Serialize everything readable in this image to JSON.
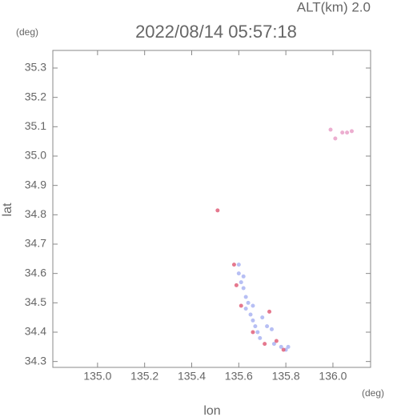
{
  "chart_data": {
    "type": "scatter",
    "title": "2022/08/14 05:57:18",
    "subtitle": "ALT(km) 2.0",
    "y_unit": "(deg)",
    "x_unit": "(deg)",
    "x_label": "lon",
    "y_label": "lat",
    "xlim": [
      134.81,
      136.16
    ],
    "ylim": [
      34.28,
      35.36
    ],
    "xticks": [
      {
        "value": 135,
        "label": "135.0"
      },
      135.2,
      135.4,
      135.6,
      135.8,
      {
        "value": 136,
        "label": "136.0"
      }
    ],
    "yticks": [
      34.3,
      34.4,
      34.5,
      34.6,
      34.7,
      34.8,
      34.9,
      {
        "value": 35,
        "label": "35.0"
      },
      35.1,
      35.2,
      35.3
    ],
    "series": [
      {
        "color": "#aab4f2",
        "x": [
          135.6,
          135.61,
          135.62,
          135.63,
          135.64,
          135.63,
          135.65,
          135.66,
          135.67,
          135.68,
          135.66,
          135.7,
          135.72,
          135.69,
          135.74,
          135.75,
          135.78,
          135.81,
          135.8,
          135.6,
          135.62
        ],
        "y": [
          34.6,
          34.57,
          34.55,
          34.52,
          34.5,
          34.48,
          34.46,
          34.44,
          34.42,
          34.4,
          34.49,
          34.45,
          34.42,
          34.38,
          34.41,
          34.36,
          34.35,
          34.35,
          34.34,
          34.63,
          34.59
        ]
      },
      {
        "color": "#e0607a",
        "x": [
          135.58,
          135.59,
          135.61,
          135.66,
          135.71,
          135.76,
          135.79,
          135.73,
          135.51
        ],
        "y": [
          34.63,
          34.56,
          34.49,
          34.4,
          34.36,
          34.37,
          34.34,
          34.47,
          34.815
        ]
      },
      {
        "color": "#e9a0c8",
        "x": [
          136.04,
          136.06,
          136.08,
          135.99,
          136.01
        ],
        "y": [
          35.08,
          35.08,
          35.085,
          35.09,
          35.06
        ]
      }
    ]
  }
}
